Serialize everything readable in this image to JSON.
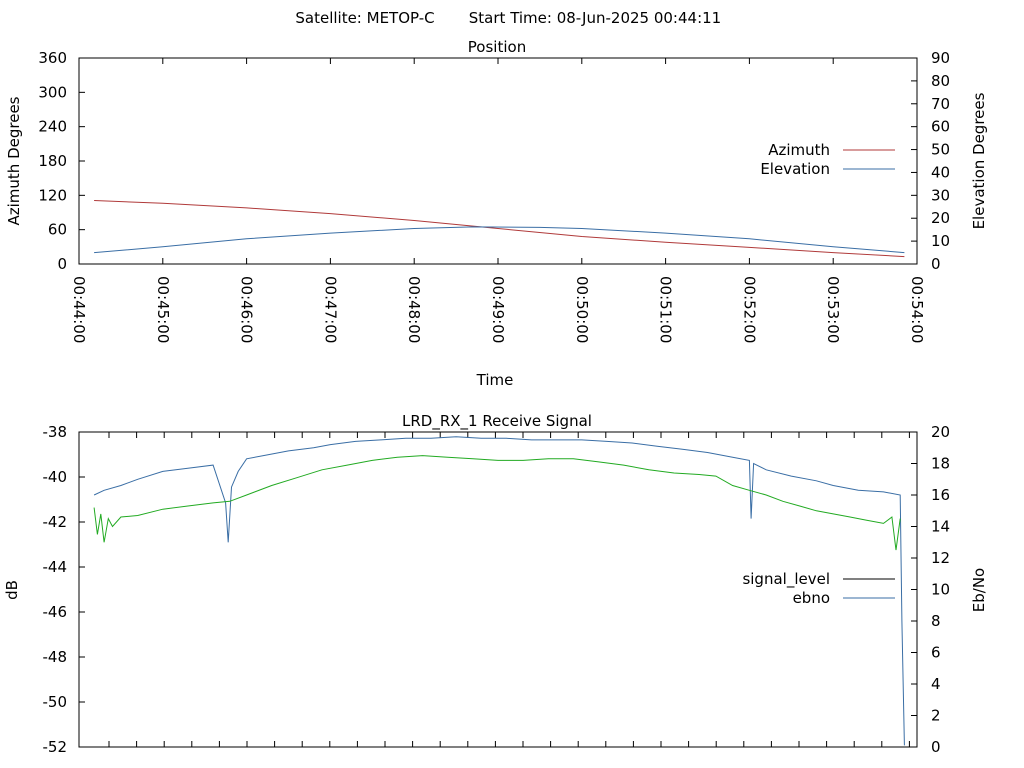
{
  "header": {
    "satellite": "Satellite: METOP-C",
    "start_time": "Start Time: 08-Jun-2025 00:44:11"
  },
  "chart_data": [
    {
      "id": "position",
      "type": "line",
      "title": "Position",
      "xlabel": "Time",
      "ylabel_left": "Azimuth Degrees",
      "ylabel_right": "Elevation Degrees",
      "x_ticks": [
        "00:44:00",
        "00:45:00",
        "00:46:00",
        "00:47:00",
        "00:48:00",
        "00:49:00",
        "00:50:00",
        "00:51:00",
        "00:52:00",
        "00:53:00",
        "00:54:00"
      ],
      "y_left_ticks": [
        "0",
        "60",
        "120",
        "180",
        "240",
        "300",
        "360"
      ],
      "y_right_ticks": [
        "0",
        "10",
        "20",
        "30",
        "40",
        "50",
        "60",
        "70",
        "80",
        "90"
      ],
      "xlim": [
        0,
        10
      ],
      "ylim_left": [
        0,
        360
      ],
      "ylim_right": [
        0,
        90
      ],
      "legend_position": "right",
      "series": [
        {
          "name": "Azimuth",
          "axis": "left",
          "color": "#b03a3a",
          "x": [
            0.18,
            1,
            2,
            3,
            4,
            5,
            6,
            7,
            8,
            9,
            9.85
          ],
          "y": [
            111,
            106,
            98,
            88,
            76,
            62,
            48,
            38,
            29,
            20,
            13
          ]
        },
        {
          "name": "Elevation",
          "axis": "right",
          "color": "#3a6ea5",
          "x": [
            0.18,
            1,
            2,
            3,
            4,
            4.7,
            5.5,
            6,
            7,
            8,
            9,
            9.85
          ],
          "y": [
            5,
            7.5,
            11,
            13.5,
            15.5,
            16.2,
            16,
            15.5,
            13.5,
            11,
            7.5,
            5
          ]
        }
      ]
    },
    {
      "id": "receive_signal",
      "type": "line",
      "title": "LRD_RX_1 Receive Signal",
      "ylabel_left": "dB",
      "ylabel_right": "Eb/No",
      "y_left_ticks": [
        "-52",
        "-50",
        "-48",
        "-46",
        "-44",
        "-42",
        "-40",
        "-38"
      ],
      "y_right_ticks": [
        "0",
        "2",
        "4",
        "6",
        "8",
        "10",
        "12",
        "14",
        "16",
        "18",
        "20"
      ],
      "ylim_left": [
        -52,
        -38
      ],
      "ylim_right": [
        0,
        20
      ],
      "xlim": [
        0,
        10
      ],
      "legend_position": "right",
      "series": [
        {
          "name": "signal_level",
          "axis": "left",
          "color": "#000000",
          "x": [],
          "y": []
        },
        {
          "name": "ebno",
          "axis": "right",
          "color": "#3a6ea5",
          "x": [
            0.18,
            0.3,
            0.5,
            0.7,
            1.0,
            1.3,
            1.6,
            1.75,
            1.78,
            1.82,
            1.9,
            2.0,
            2.2,
            2.5,
            2.8,
            3.0,
            3.3,
            3.6,
            3.9,
            4.2,
            4.5,
            4.8,
            5.1,
            5.4,
            5.7,
            6.0,
            6.3,
            6.6,
            6.9,
            7.2,
            7.5,
            7.8,
            8.0,
            8.02,
            8.05,
            8.2,
            8.5,
            8.8,
            9.0,
            9.3,
            9.6,
            9.8,
            9.82,
            9.85
          ],
          "y": [
            16,
            16.3,
            16.6,
            17.0,
            17.5,
            17.7,
            17.9,
            15.5,
            13,
            16.5,
            17.5,
            18.3,
            18.5,
            18.8,
            19.0,
            19.2,
            19.4,
            19.5,
            19.6,
            19.6,
            19.7,
            19.6,
            19.6,
            19.5,
            19.5,
            19.5,
            19.4,
            19.3,
            19.1,
            18.9,
            18.7,
            18.4,
            18.2,
            14.5,
            18.0,
            17.6,
            17.2,
            16.9,
            16.6,
            16.3,
            16.2,
            16.0,
            8.0,
            0.1
          ]
        },
        {
          "name": "",
          "axis": "right",
          "color": "#22aa22",
          "x": [
            0.18,
            0.22,
            0.26,
            0.3,
            0.35,
            0.4,
            0.5,
            0.7,
            1.0,
            1.3,
            1.6,
            1.8,
            2.0,
            2.3,
            2.6,
            2.9,
            3.2,
            3.5,
            3.8,
            4.1,
            4.4,
            4.7,
            5.0,
            5.3,
            5.6,
            5.9,
            6.2,
            6.5,
            6.8,
            7.1,
            7.4,
            7.6,
            7.8,
            8.0,
            8.2,
            8.4,
            8.6,
            8.8,
            9.0,
            9.2,
            9.4,
            9.6,
            9.7,
            9.75,
            9.8
          ],
          "y": [
            15.2,
            13.5,
            14.8,
            13.0,
            14.5,
            14.0,
            14.6,
            14.7,
            15.1,
            15.3,
            15.5,
            15.6,
            16.0,
            16.6,
            17.1,
            17.6,
            17.9,
            18.2,
            18.4,
            18.5,
            18.4,
            18.3,
            18.2,
            18.2,
            18.3,
            18.3,
            18.1,
            17.9,
            17.6,
            17.4,
            17.3,
            17.2,
            16.6,
            16.3,
            16.0,
            15.6,
            15.3,
            15.0,
            14.8,
            14.6,
            14.4,
            14.2,
            14.6,
            12.5,
            14.5
          ]
        }
      ]
    }
  ]
}
